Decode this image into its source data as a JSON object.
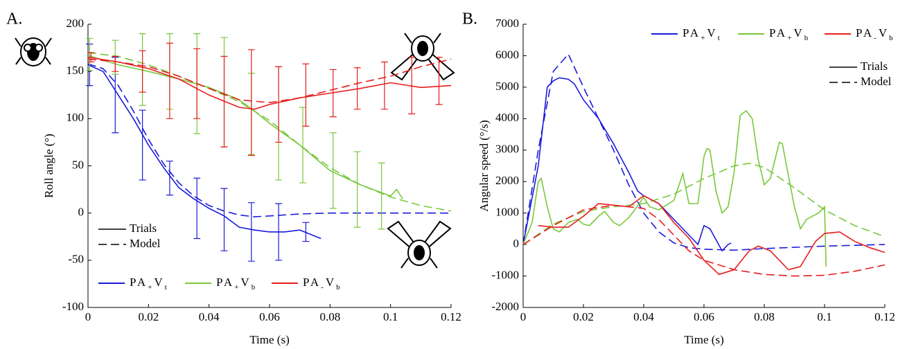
{
  "chart_data": [
    {
      "type": "line",
      "title": "A.",
      "xlabel": "Time (s)",
      "ylabel": "Roll angle (°)",
      "xlim": [
        0,
        0.12
      ],
      "ylim": [
        -100,
        200
      ],
      "xticks": [
        0,
        0.02,
        0.04,
        0.06,
        0.08,
        0.1,
        0.12
      ],
      "yticks": [
        -100,
        -50,
        0,
        50,
        100,
        150,
        200
      ],
      "style_labels": [
        "Trials",
        "Model"
      ],
      "legend": "lower left",
      "series": [
        {
          "name": "PA+Vt",
          "color": "#1a1adb",
          "trial_x": [
            0,
            0.005,
            0.01,
            0.015,
            0.02,
            0.025,
            0.03,
            0.035,
            0.04,
            0.045,
            0.05,
            0.055,
            0.06,
            0.065,
            0.07,
            0.077
          ],
          "trial_values": [
            157,
            150,
            125,
            100,
            72,
            48,
            27,
            15,
            5,
            -3,
            -15,
            -18,
            -20,
            -20,
            -18,
            -27
          ],
          "model_x": [
            0,
            0.005,
            0.01,
            0.015,
            0.02,
            0.025,
            0.03,
            0.035,
            0.04,
            0.045,
            0.05,
            0.055,
            0.06,
            0.07,
            0.08,
            0.1,
            0.12
          ],
          "model_values": [
            158,
            153,
            135,
            108,
            78,
            52,
            32,
            18,
            8,
            2,
            -2,
            -4,
            -3,
            -1,
            0,
            0,
            0
          ],
          "error_x": [
            0.0005,
            0.009,
            0.018,
            0.027,
            0.036,
            0.045,
            0.054,
            0.063,
            0.072
          ],
          "error_values": [
            157,
            125,
            72,
            37,
            5,
            -7,
            -20,
            -20,
            -20
          ],
          "errors": [
            22,
            40,
            37,
            18,
            32,
            33,
            31,
            30,
            10
          ]
        },
        {
          "name": "PA+Vb",
          "color": "#77c83a",
          "trial_x": [
            0,
            0.01,
            0.02,
            0.03,
            0.04,
            0.05,
            0.055,
            0.06,
            0.07,
            0.08,
            0.09,
            0.1,
            0.102,
            0.104
          ],
          "trial_values": [
            167,
            157,
            150,
            142,
            133,
            120,
            108,
            95,
            72,
            45,
            30,
            18,
            25,
            15
          ],
          "model_x": [
            0,
            0.01,
            0.02,
            0.03,
            0.04,
            0.05,
            0.06,
            0.07,
            0.08,
            0.09,
            0.1,
            0.11,
            0.12
          ],
          "model_values": [
            170,
            166,
            157,
            145,
            132,
            118,
            98,
            72,
            48,
            30,
            17,
            8,
            2
          ],
          "error_x": [
            0.0005,
            0.009,
            0.018,
            0.027,
            0.036,
            0.045,
            0.054,
            0.063,
            0.071,
            0.081,
            0.089,
            0.097
          ],
          "error_values": [
            168,
            165,
            152,
            150,
            137,
            128,
            105,
            95,
            72,
            45,
            25,
            18
          ],
          "errors": [
            17,
            18,
            38,
            40,
            53,
            58,
            43,
            60,
            40,
            40,
            40,
            35
          ]
        },
        {
          "name": "PA-Vb",
          "color": "#e81c1c",
          "trial_x": [
            0,
            0.01,
            0.02,
            0.03,
            0.04,
            0.05,
            0.055,
            0.06,
            0.07,
            0.08,
            0.09,
            0.1,
            0.11,
            0.12
          ],
          "trial_values": [
            165,
            160,
            153,
            142,
            125,
            112,
            110,
            115,
            122,
            127,
            132,
            138,
            133,
            135
          ],
          "model_x": [
            0,
            0.01,
            0.02,
            0.03,
            0.04,
            0.05,
            0.06,
            0.07,
            0.08,
            0.09,
            0.1,
            0.11,
            0.12
          ],
          "model_values": [
            163,
            160,
            155,
            145,
            132,
            120,
            117,
            122,
            130,
            138,
            145,
            155,
            163
          ],
          "error_x": [
            0.001,
            0.009,
            0.018,
            0.027,
            0.036,
            0.045,
            0.054,
            0.063,
            0.072,
            0.081,
            0.089,
            0.098,
            0.107,
            0.116
          ],
          "error_values": [
            165,
            158,
            150,
            140,
            137,
            118,
            117,
            115,
            125,
            127,
            132,
            135,
            135,
            140
          ],
          "errors": [
            5,
            8,
            22,
            40,
            37,
            48,
            56,
            40,
            33,
            25,
            22,
            25,
            30,
            25
          ]
        }
      ]
    },
    {
      "type": "line",
      "title": "B.",
      "xlabel": "Time (s)",
      "ylabel": "Angular speed (°/s)",
      "xlim": [
        0,
        0.12
      ],
      "ylim": [
        -2000,
        7000
      ],
      "xticks": [
        0,
        0.02,
        0.04,
        0.06,
        0.08,
        0.1,
        0.12
      ],
      "yticks": [
        -2000,
        -1000,
        0,
        1000,
        2000,
        3000,
        4000,
        5000,
        6000,
        7000
      ],
      "style_labels": [
        "Trials",
        "Model"
      ],
      "legend": "upper right",
      "series": [
        {
          "name": "PA+Vt",
          "color": "#1a1adb",
          "trial_x": [
            0,
            0.005,
            0.008,
            0.01,
            0.012,
            0.015,
            0.017,
            0.02,
            0.025,
            0.03,
            0.035,
            0.038,
            0.04,
            0.045,
            0.05,
            0.055,
            0.058,
            0.06,
            0.062,
            0.066,
            0.068,
            0.069
          ],
          "trial_values": [
            0,
            2500,
            5000,
            5200,
            5300,
            5250,
            5100,
            4600,
            4000,
            3200,
            2300,
            1700,
            1550,
            1300,
            800,
            300,
            0,
            600,
            500,
            -200,
            0,
            50
          ],
          "model_x": [
            0,
            0.005,
            0.01,
            0.015,
            0.02,
            0.025,
            0.03,
            0.035,
            0.04,
            0.045,
            0.05,
            0.055,
            0.06,
            0.07,
            0.08,
            0.1,
            0.12
          ],
          "model_values": [
            0,
            3000,
            5500,
            6050,
            5000,
            4000,
            3000,
            1900,
            1000,
            400,
            50,
            -100,
            -150,
            -180,
            -130,
            -50,
            0
          ]
        },
        {
          "name": "PA+Vb",
          "color": "#77c83a",
          "trial_x": [
            0,
            0.003,
            0.005,
            0.006,
            0.008,
            0.01,
            0.012,
            0.015,
            0.018,
            0.02,
            0.022,
            0.025,
            0.027,
            0.03,
            0.032,
            0.035,
            0.037,
            0.04,
            0.042,
            0.045,
            0.05,
            0.053,
            0.055,
            0.058,
            0.06,
            0.061,
            0.062,
            0.064,
            0.066,
            0.068,
            0.07,
            0.072,
            0.074,
            0.076,
            0.078,
            0.08,
            0.082,
            0.085,
            0.086,
            0.088,
            0.09,
            0.092,
            0.094,
            0.096,
            0.098,
            0.1,
            0.1005
          ],
          "trial_values": [
            0,
            700,
            2000,
            2100,
            1200,
            500,
            400,
            700,
            800,
            650,
            600,
            900,
            1050,
            700,
            600,
            850,
            1100,
            1500,
            1200,
            1100,
            1400,
            2250,
            1300,
            1300,
            2800,
            3050,
            3000,
            1700,
            1000,
            1200,
            2300,
            4100,
            4250,
            4000,
            2700,
            1900,
            2100,
            3250,
            3200,
            2200,
            1200,
            500,
            800,
            900,
            1000,
            1200,
            -700
          ],
          "model_x": [
            0,
            0.01,
            0.02,
            0.03,
            0.04,
            0.05,
            0.06,
            0.07,
            0.075,
            0.08,
            0.09,
            0.1,
            0.11,
            0.12
          ],
          "model_values": [
            0,
            650,
            1050,
            1200,
            1300,
            1600,
            2100,
            2500,
            2580,
            2450,
            1800,
            1100,
            600,
            250
          ]
        },
        {
          "name": "PA-Vb",
          "color": "#e81c1c",
          "trial_x": [
            0.005,
            0.01,
            0.015,
            0.02,
            0.025,
            0.03,
            0.035,
            0.04,
            0.045,
            0.05,
            0.055,
            0.06,
            0.065,
            0.07,
            0.075,
            0.078,
            0.082,
            0.088,
            0.092,
            0.097,
            0.1,
            0.105,
            0.11,
            0.115,
            0.12
          ],
          "trial_values": [
            600,
            550,
            550,
            900,
            1300,
            1250,
            1200,
            1550,
            1300,
            700,
            200,
            -500,
            -950,
            -800,
            -200,
            -50,
            -200,
            -800,
            -700,
            100,
            350,
            400,
            100,
            -100,
            -250
          ],
          "model_x": [
            0,
            0.01,
            0.02,
            0.03,
            0.04,
            0.045,
            0.05,
            0.055,
            0.06,
            0.07,
            0.08,
            0.09,
            0.1,
            0.11,
            0.12
          ],
          "model_values": [
            0,
            600,
            1100,
            1250,
            1150,
            800,
            300,
            -200,
            -500,
            -800,
            -950,
            -1000,
            -980,
            -850,
            -650
          ]
        }
      ]
    }
  ]
}
